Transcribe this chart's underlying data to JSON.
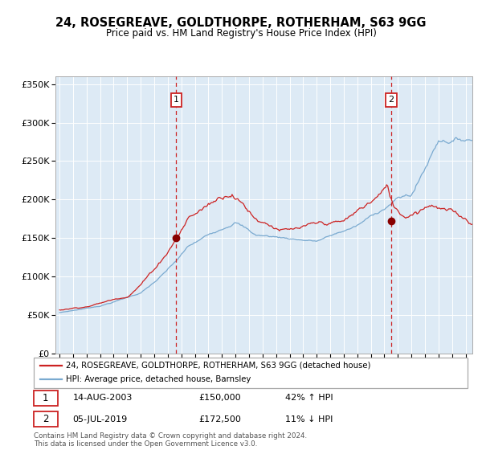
{
  "title": "24, ROSEGREAVE, GOLDTHORPE, ROTHERHAM, S63 9GG",
  "subtitle": "Price paid vs. HM Land Registry's House Price Index (HPI)",
  "legend_line1": "24, ROSEGREAVE, GOLDTHORPE, ROTHERHAM, S63 9GG (detached house)",
  "legend_line2": "HPI: Average price, detached house, Barnsley",
  "marker1_date": "14-AUG-2003",
  "marker1_price": 150000,
  "marker1_hpi_pct": "42% ↑ HPI",
  "marker2_date": "05-JUL-2019",
  "marker2_price": 172500,
  "marker2_hpi_pct": "11% ↓ HPI",
  "footer": "Contains HM Land Registry data © Crown copyright and database right 2024.\nThis data is licensed under the Open Government Licence v3.0.",
  "hpi_color": "#7aaad0",
  "property_color": "#cc2222",
  "marker_color": "#880000",
  "plot_bg": "#ddeaf5",
  "grid_color": "#ffffff",
  "marker1_x": 2003.62,
  "marker2_x": 2019.5,
  "marker1_y": 150000,
  "marker2_y": 172500,
  "ylim": [
    0,
    360000
  ],
  "xlim_start": 1994.7,
  "xlim_end": 2025.5
}
